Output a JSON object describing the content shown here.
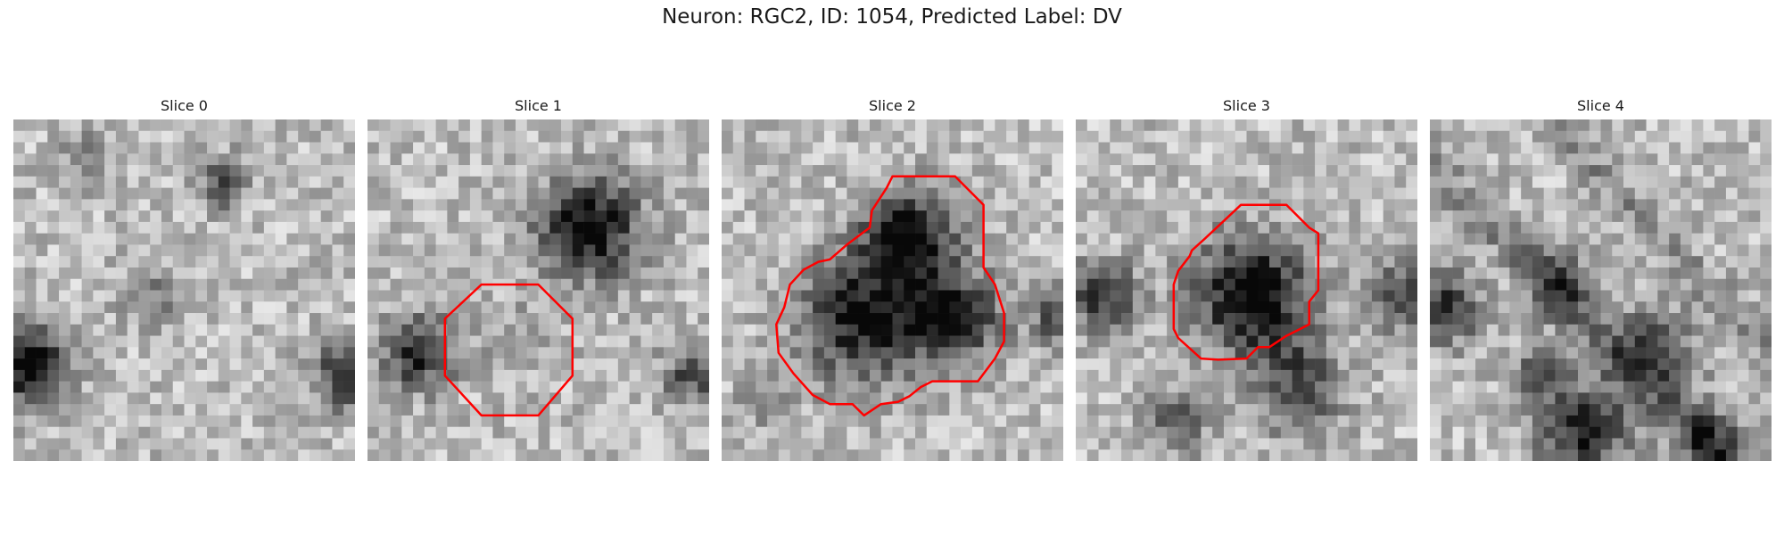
{
  "figure": {
    "title": "Neuron: RGC2, ID: 1054, Predicted Label: DV"
  },
  "panels": [
    {
      "title": "Slice 0",
      "seed": 11
    },
    {
      "title": "Slice 1",
      "seed": 23
    },
    {
      "title": "Slice 2",
      "seed": 37
    },
    {
      "title": "Slice 3",
      "seed": 41
    },
    {
      "title": "Slice 4",
      "seed": 59
    }
  ],
  "style": {
    "contour_color": "#ff0000"
  }
}
